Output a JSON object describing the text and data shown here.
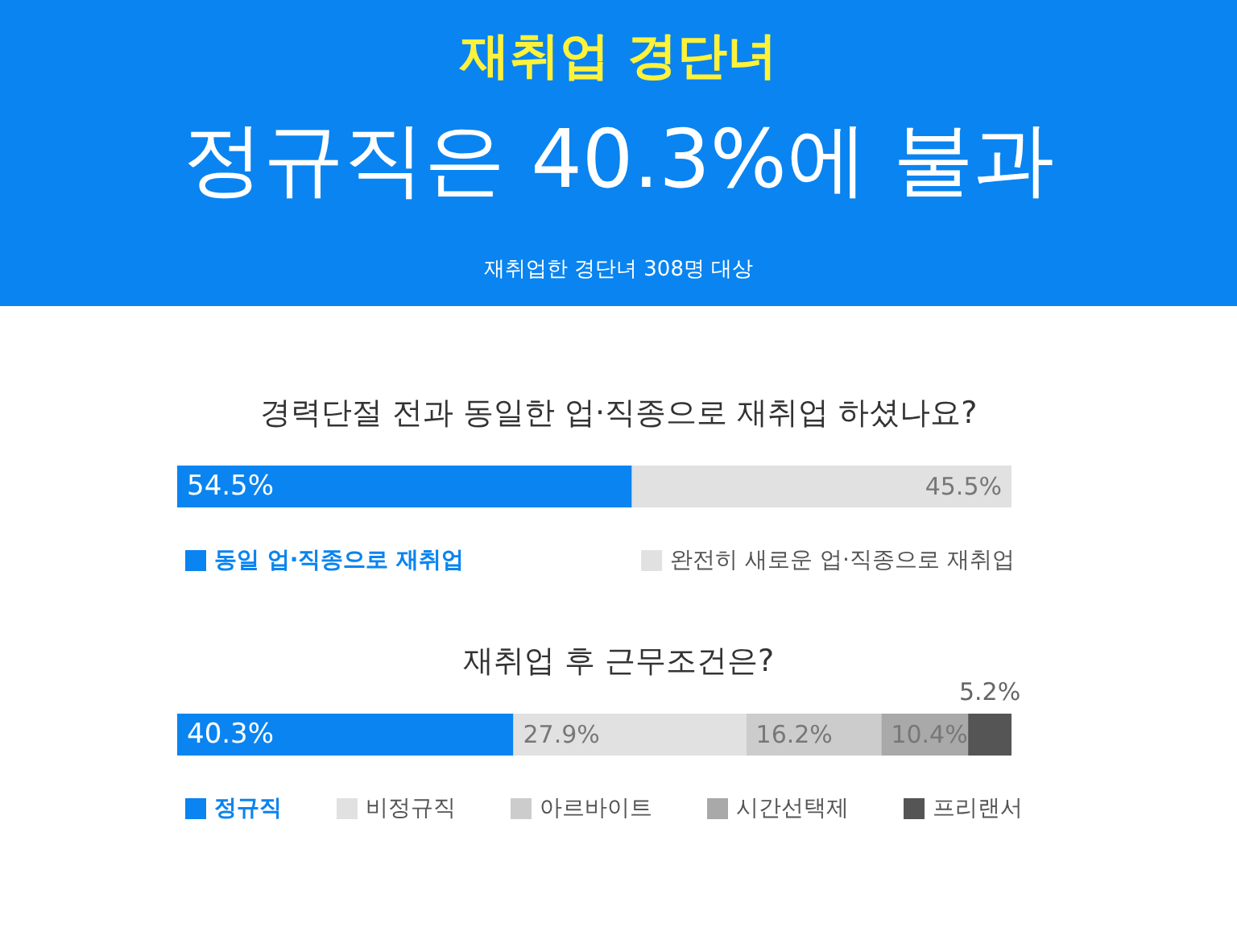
{
  "chart_data": [
    {
      "type": "other",
      "title": "재취업 경단녀",
      "subtitle": "정규직은 40.3%에 불과",
      "annotations": [
        "재취업한 경단녀 308명 대상"
      ]
    },
    {
      "type": "bar",
      "orientation": "horizontal",
      "stacked": true,
      "title": "경력단절 전과 동일한 업·직종으로 재취업 하셨나요?",
      "categories": [
        null
      ],
      "legend": "bottom",
      "series": [
        {
          "name": "동일 업·직종으로 재취업",
          "color": "#0a84f0",
          "values": [
            54.5
          ],
          "value_labels": [
            "54.5%"
          ]
        },
        {
          "name": "완전히 새로운 업·직종으로 재취업",
          "color": "#e1e1e1",
          "values": [
            45.5
          ],
          "value_labels": [
            "45.5%"
          ]
        }
      ]
    },
    {
      "type": "bar",
      "orientation": "horizontal",
      "stacked": true,
      "title": "재취업 후 근무조건은?",
      "categories": [
        null
      ],
      "legend": "bottom",
      "series": [
        {
          "name": "정규직",
          "color": "#0a84f0",
          "values": [
            40.3
          ],
          "value_labels": [
            "40.3%"
          ]
        },
        {
          "name": "비정규직",
          "color": "#e1e1e1",
          "values": [
            27.9
          ],
          "value_labels": [
            "27.9%"
          ]
        },
        {
          "name": "아르바이트",
          "color": "#cccccc",
          "values": [
            16.2
          ],
          "value_labels": [
            "16.2%"
          ]
        },
        {
          "name": "시간선택제",
          "color": "#a9a9a9",
          "values": [
            10.4
          ],
          "value_labels": [
            "10.4%"
          ]
        },
        {
          "name": "프리랜서",
          "color": "#555555",
          "values": [
            5.2
          ],
          "value_labels": [
            "5.2%"
          ]
        }
      ]
    }
  ]
}
